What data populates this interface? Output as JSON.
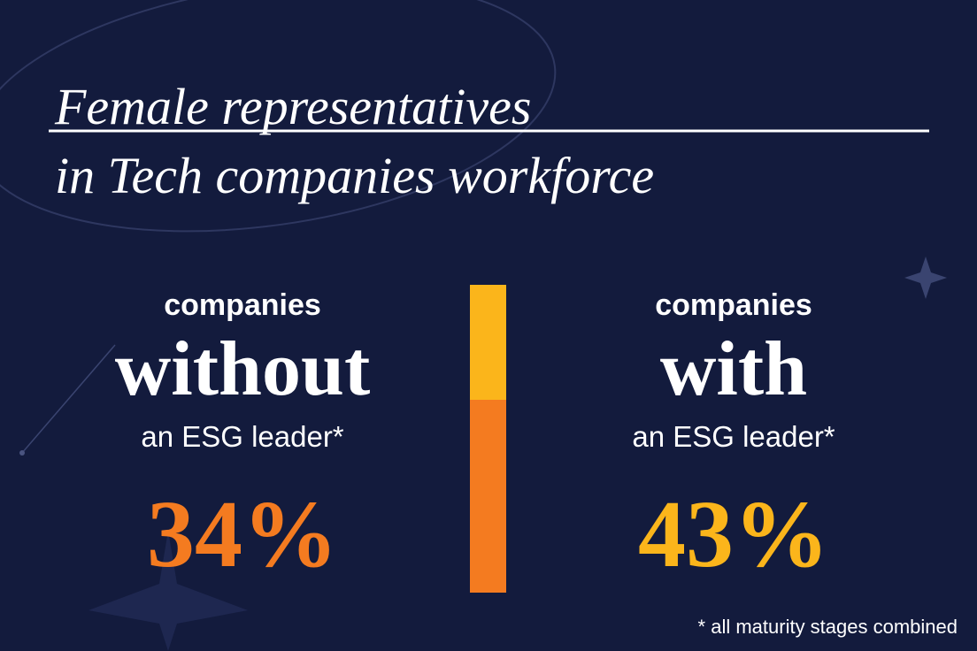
{
  "title": {
    "line1": "Female representatives",
    "line2": "in Tech companies workforce"
  },
  "columns": [
    {
      "top": "companies",
      "keyword": "without",
      "bottom": "an ESG leader*",
      "figure": "34%"
    },
    {
      "top": "companies",
      "keyword": "with",
      "bottom": "an ESG leader*",
      "figure": "43%"
    }
  ],
  "footnote": "* all maturity stages combined"
}
